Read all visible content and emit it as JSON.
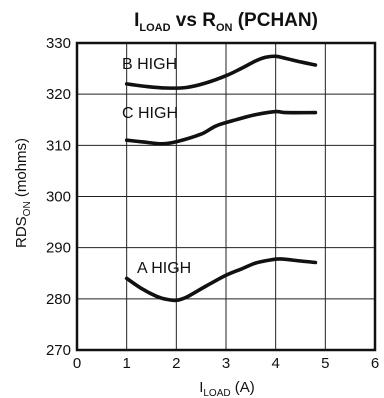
{
  "chart_data": {
    "type": "line",
    "title": {
      "main": "I",
      "main_sub": "LOAD",
      "mid": " vs R",
      "mid_sub": "ON",
      "end": " (PCHAN)"
    },
    "xlabel": {
      "main": "I",
      "sub": "LOAD",
      "unit": " (A)"
    },
    "ylabel": {
      "main": "RDS",
      "sub": "ON",
      "unit": " (mohms)"
    },
    "xlim": [
      0,
      6
    ],
    "ylim": [
      270,
      330
    ],
    "xticks": [
      "0",
      "1",
      "2",
      "3",
      "4",
      "5",
      "6"
    ],
    "yticks": [
      "270",
      "280",
      "290",
      "300",
      "310",
      "320",
      "330"
    ],
    "grid": true,
    "series": [
      {
        "name": "B HIGH",
        "x": [
          1.0,
          1.4,
          1.8,
          2.2,
          2.6,
          3.0,
          3.3,
          3.6,
          3.8,
          4.0,
          4.2,
          4.5,
          4.8
        ],
        "y": [
          322.0,
          321.5,
          321.2,
          321.3,
          322.2,
          323.6,
          325.0,
          326.5,
          327.2,
          327.4,
          327.0,
          326.3,
          325.7
        ]
      },
      {
        "name": "C HIGH",
        "x": [
          1.0,
          1.3,
          1.7,
          2.0,
          2.5,
          2.8,
          3.2,
          3.6,
          4.0,
          4.2,
          4.8
        ],
        "y": [
          311.0,
          310.7,
          310.3,
          310.7,
          312.2,
          313.8,
          315.0,
          316.0,
          316.6,
          316.4,
          316.4
        ]
      },
      {
        "name": "A HIGH",
        "x": [
          1.0,
          1.3,
          1.6,
          1.8,
          2.0,
          2.2,
          2.6,
          3.0,
          3.3,
          3.6,
          3.9,
          4.1,
          4.5,
          4.8
        ],
        "y": [
          284.0,
          282.0,
          280.5,
          279.9,
          279.7,
          280.3,
          282.5,
          284.6,
          285.8,
          287.0,
          287.6,
          287.8,
          287.4,
          287.1
        ]
      }
    ]
  }
}
